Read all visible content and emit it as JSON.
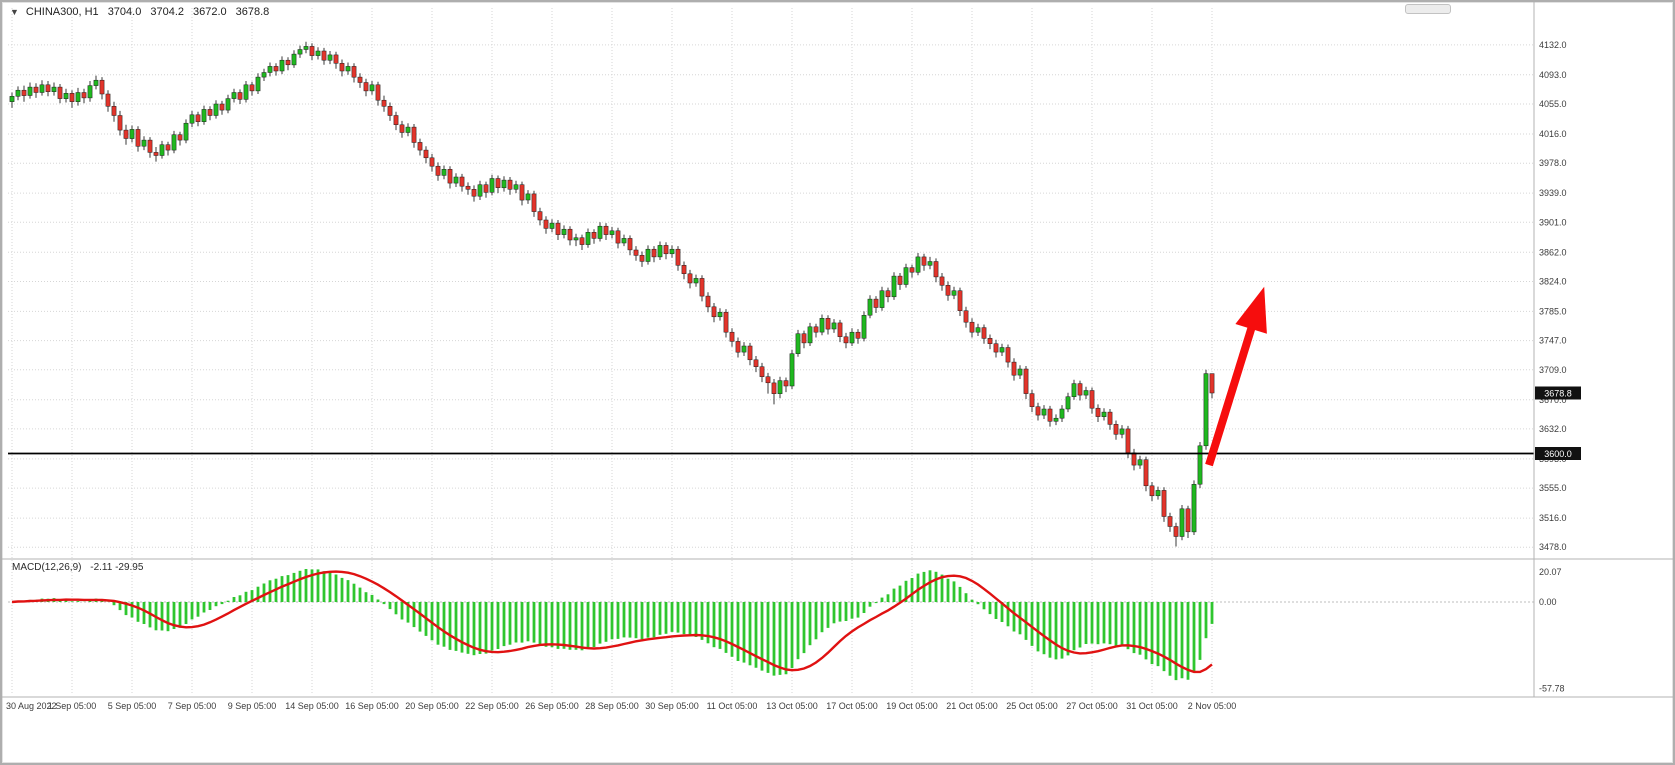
{
  "window": {
    "title_symbol": "CHINA300, H1",
    "ohlc": {
      "open": "3704.0",
      "high": "3704.2",
      "low": "3672.0",
      "close": "3678.8"
    }
  },
  "indicator_label": {
    "name": "MACD(12,26,9)",
    "values": "-2.11 -29.95"
  },
  "colors": {
    "up_candle": "#1fb81f",
    "down_candle": "#e2342b",
    "wick": "#3a3a3a",
    "grid": "#d6d6d6",
    "hline": "#000000",
    "badge_bg": "#111111",
    "badge_text": "#ffffff",
    "axis_text": "#3c3c3c"
  },
  "chart_data": {
    "type": "candlestick",
    "symbol": "CHINA300",
    "timeframe": "H1",
    "title": "CHINA300, H1 3704.0 3704.2 3672.0 3678.8",
    "ohlc_current": {
      "open": 3704.0,
      "high": 3704.2,
      "low": 3672.0,
      "close": 3678.8
    },
    "current_price": 3678.8,
    "horizontal_line_price": 3600.0,
    "price_range_rendered": [
      3464,
      4180
    ],
    "price_axis_ticks": [
      4132.0,
      4093.0,
      4055.0,
      4016.0,
      3978.0,
      3939.0,
      3901.0,
      3862.0,
      3824.0,
      3785.0,
      3747.0,
      3709.0,
      3670.0,
      3632.0,
      3593.0,
      3555.0,
      3516.0,
      3478.0
    ],
    "time_labels": [
      "30 Aug 2022",
      "1 Sep 05:00",
      "5 Sep 05:00",
      "7 Sep 05:00",
      "9 Sep 05:00",
      "14 Sep 05:00",
      "16 Sep 05:00",
      "20 Sep 05:00",
      "22 Sep 05:00",
      "26 Sep 05:00",
      "28 Sep 05:00",
      "30 Sep 05:00",
      "11 Oct 05:00",
      "13 Oct 05:00",
      "17 Oct 05:00",
      "19 Oct 05:00",
      "21 Oct 05:00",
      "25 Oct 05:00",
      "27 Oct 05:00",
      "31 Oct 05:00",
      "2 Nov 05:00"
    ],
    "indicator": {
      "type": "MACD",
      "fast": 12,
      "slow": 26,
      "signal": 9,
      "current_macd": -2.11,
      "current_signal": -29.95,
      "histogram_color": "#2fc62f",
      "signal_color": "#e01212",
      "axis_ticks": [
        {
          "label": "20.07",
          "value": 20.07
        },
        {
          "label": "0.00",
          "value": 0
        },
        {
          "label": "-57.78",
          "value": -57.78
        }
      ]
    },
    "annotations": [
      {
        "type": "arrow-up",
        "color": "#f60d0d",
        "width": 8,
        "from": {
          "index": 199.5,
          "price": 3585
        },
        "to": {
          "index": 208.7,
          "price": 3817
        }
      }
    ],
    "candles_ohlc": [
      [
        4058,
        4070,
        4050,
        4065
      ],
      [
        4065,
        4078,
        4060,
        4073
      ],
      [
        4073,
        4079,
        4058,
        4066
      ],
      [
        4066,
        4083,
        4062,
        4077
      ],
      [
        4077,
        4082,
        4063,
        4070
      ],
      [
        4070,
        4086,
        4066,
        4080
      ],
      [
        4080,
        4085,
        4065,
        4071
      ],
      [
        4071,
        4083,
        4066,
        4077
      ],
      [
        4077,
        4081,
        4056,
        4062
      ],
      [
        4062,
        4075,
        4057,
        4069
      ],
      [
        4069,
        4073,
        4050,
        4058
      ],
      [
        4058,
        4076,
        4053,
        4070
      ],
      [
        4070,
        4075,
        4056,
        4063
      ],
      [
        4063,
        4085,
        4058,
        4079
      ],
      [
        4079,
        4092,
        4074,
        4086
      ],
      [
        4086,
        4090,
        4061,
        4068
      ],
      [
        4068,
        4073,
        4045,
        4052
      ],
      [
        4052,
        4058,
        4032,
        4040
      ],
      [
        4040,
        4046,
        4014,
        4021
      ],
      [
        4021,
        4028,
        4002,
        4010
      ],
      [
        4010,
        4027,
        4005,
        4022
      ],
      [
        4022,
        4026,
        3993,
        4000
      ],
      [
        4000,
        4013,
        3995,
        4008
      ],
      [
        4008,
        4012,
        3985,
        3992
      ],
      [
        3992,
        3999,
        3980,
        3988
      ],
      [
        3988,
        4007,
        3984,
        4002
      ],
      [
        4002,
        4006,
        3988,
        3995
      ],
      [
        3995,
        4020,
        3991,
        4015
      ],
      [
        4015,
        4019,
        4001,
        4008
      ],
      [
        4008,
        4035,
        4004,
        4030
      ],
      [
        4030,
        4046,
        4025,
        4041
      ],
      [
        4041,
        4045,
        4026,
        4032
      ],
      [
        4032,
        4053,
        4028,
        4048
      ],
      [
        4048,
        4052,
        4034,
        4040
      ],
      [
        4040,
        4060,
        4036,
        4055
      ],
      [
        4055,
        4059,
        4041,
        4047
      ],
      [
        4047,
        4067,
        4043,
        4062
      ],
      [
        4062,
        4075,
        4057,
        4070
      ],
      [
        4070,
        4074,
        4055,
        4061
      ],
      [
        4061,
        4085,
        4057,
        4080
      ],
      [
        4080,
        4084,
        4066,
        4072
      ],
      [
        4072,
        4095,
        4068,
        4090
      ],
      [
        4090,
        4101,
        4085,
        4096
      ],
      [
        4096,
        4109,
        4091,
        4104
      ],
      [
        4104,
        4108,
        4092,
        4098
      ],
      [
        4098,
        4117,
        4094,
        4112
      ],
      [
        4112,
        4116,
        4099,
        4106
      ],
      [
        4106,
        4125,
        4102,
        4120
      ],
      [
        4120,
        4131,
        4115,
        4126
      ],
      [
        4126,
        4136,
        4121,
        4130
      ],
      [
        4130,
        4134,
        4112,
        4118
      ],
      [
        4118,
        4129,
        4113,
        4124
      ],
      [
        4124,
        4128,
        4106,
        4112
      ],
      [
        4112,
        4124,
        4107,
        4119
      ],
      [
        4119,
        4123,
        4101,
        4108
      ],
      [
        4108,
        4113,
        4091,
        4098
      ],
      [
        4098,
        4109,
        4093,
        4104
      ],
      [
        4104,
        4108,
        4083,
        4090
      ],
      [
        4090,
        4095,
        4076,
        4083
      ],
      [
        4083,
        4088,
        4065,
        4072
      ],
      [
        4072,
        4085,
        4067,
        4080
      ],
      [
        4080,
        4084,
        4053,
        4060
      ],
      [
        4060,
        4066,
        4045,
        4052
      ],
      [
        4052,
        4057,
        4033,
        4040
      ],
      [
        4040,
        4045,
        4021,
        4028
      ],
      [
        4028,
        4033,
        4011,
        4018
      ],
      [
        4018,
        4030,
        4013,
        4025
      ],
      [
        4025,
        4029,
        3998,
        4005
      ],
      [
        4005,
        4010,
        3988,
        3995
      ],
      [
        3995,
        4000,
        3978,
        3985
      ],
      [
        3985,
        3990,
        3967,
        3974
      ],
      [
        3974,
        3979,
        3955,
        3962
      ],
      [
        3962,
        3975,
        3957,
        3970
      ],
      [
        3970,
        3974,
        3945,
        3952
      ],
      [
        3952,
        3965,
        3947,
        3960
      ],
      [
        3960,
        3964,
        3941,
        3948
      ],
      [
        3948,
        3953,
        3937,
        3944
      ],
      [
        3944,
        3949,
        3928,
        3935
      ],
      [
        3935,
        3955,
        3930,
        3950
      ],
      [
        3950,
        3954,
        3933,
        3940
      ],
      [
        3940,
        3963,
        3936,
        3958
      ],
      [
        3958,
        3962,
        3939,
        3946
      ],
      [
        3946,
        3961,
        3941,
        3956
      ],
      [
        3956,
        3960,
        3937,
        3944
      ],
      [
        3944,
        3955,
        3939,
        3950
      ],
      [
        3950,
        3954,
        3923,
        3930
      ],
      [
        3930,
        3943,
        3925,
        3938
      ],
      [
        3938,
        3942,
        3908,
        3915
      ],
      [
        3915,
        3920,
        3897,
        3904
      ],
      [
        3904,
        3909,
        3886,
        3893
      ],
      [
        3893,
        3905,
        3888,
        3900
      ],
      [
        3900,
        3904,
        3878,
        3885
      ],
      [
        3885,
        3897,
        3880,
        3892
      ],
      [
        3892,
        3896,
        3871,
        3878
      ],
      [
        3878,
        3886,
        3870,
        3881
      ],
      [
        3881,
        3885,
        3865,
        3872
      ],
      [
        3872,
        3893,
        3868,
        3888
      ],
      [
        3888,
        3892,
        3873,
        3880
      ],
      [
        3880,
        3901,
        3876,
        3896
      ],
      [
        3896,
        3900,
        3878,
        3885
      ],
      [
        3885,
        3895,
        3880,
        3890
      ],
      [
        3890,
        3894,
        3867,
        3874
      ],
      [
        3874,
        3885,
        3870,
        3880
      ],
      [
        3880,
        3884,
        3858,
        3865
      ],
      [
        3865,
        3870,
        3851,
        3858
      ],
      [
        3858,
        3863,
        3843,
        3850
      ],
      [
        3850,
        3871,
        3846,
        3866
      ],
      [
        3866,
        3870,
        3849,
        3856
      ],
      [
        3856,
        3876,
        3852,
        3871
      ],
      [
        3871,
        3875,
        3853,
        3860
      ],
      [
        3860,
        3871,
        3855,
        3866
      ],
      [
        3866,
        3870,
        3838,
        3845
      ],
      [
        3845,
        3850,
        3827,
        3834
      ],
      [
        3834,
        3839,
        3815,
        3822
      ],
      [
        3822,
        3833,
        3817,
        3828
      ],
      [
        3828,
        3832,
        3798,
        3805
      ],
      [
        3805,
        3810,
        3784,
        3791
      ],
      [
        3791,
        3796,
        3771,
        3778
      ],
      [
        3778,
        3789,
        3773,
        3784
      ],
      [
        3784,
        3788,
        3751,
        3758
      ],
      [
        3758,
        3763,
        3739,
        3746
      ],
      [
        3746,
        3751,
        3725,
        3732
      ],
      [
        3732,
        3745,
        3727,
        3740
      ],
      [
        3740,
        3744,
        3715,
        3722
      ],
      [
        3722,
        3727,
        3706,
        3713
      ],
      [
        3713,
        3718,
        3693,
        3700
      ],
      [
        3700,
        3705,
        3678,
        3692
      ],
      [
        3692,
        3697,
        3664,
        3678
      ],
      [
        3678,
        3700,
        3672,
        3695
      ],
      [
        3695,
        3699,
        3680,
        3688
      ],
      [
        3688,
        3735,
        3684,
        3730
      ],
      [
        3730,
        3761,
        3726,
        3756
      ],
      [
        3756,
        3760,
        3737,
        3744
      ],
      [
        3744,
        3770,
        3740,
        3765
      ],
      [
        3765,
        3769,
        3751,
        3758
      ],
      [
        3758,
        3781,
        3754,
        3776
      ],
      [
        3776,
        3780,
        3755,
        3762
      ],
      [
        3762,
        3775,
        3757,
        3770
      ],
      [
        3770,
        3774,
        3745,
        3752
      ],
      [
        3752,
        3757,
        3737,
        3744
      ],
      [
        3744,
        3763,
        3740,
        3758
      ],
      [
        3758,
        3762,
        3743,
        3750
      ],
      [
        3750,
        3785,
        3746,
        3780
      ],
      [
        3780,
        3806,
        3776,
        3801
      ],
      [
        3801,
        3805,
        3783,
        3790
      ],
      [
        3790,
        3817,
        3786,
        3812
      ],
      [
        3812,
        3816,
        3797,
        3804
      ],
      [
        3804,
        3836,
        3800,
        3831
      ],
      [
        3831,
        3835,
        3813,
        3820
      ],
      [
        3820,
        3847,
        3816,
        3842
      ],
      [
        3842,
        3846,
        3829,
        3836
      ],
      [
        3836,
        3861,
        3832,
        3856
      ],
      [
        3856,
        3860,
        3838,
        3845
      ],
      [
        3845,
        3856,
        3840,
        3850
      ],
      [
        3850,
        3854,
        3823,
        3830
      ],
      [
        3830,
        3835,
        3812,
        3819
      ],
      [
        3819,
        3824,
        3799,
        3806
      ],
      [
        3806,
        3817,
        3801,
        3812
      ],
      [
        3812,
        3816,
        3779,
        3786
      ],
      [
        3786,
        3791,
        3764,
        3771
      ],
      [
        3771,
        3776,
        3751,
        3758
      ],
      [
        3758,
        3769,
        3753,
        3764
      ],
      [
        3764,
        3768,
        3743,
        3750
      ],
      [
        3750,
        3755,
        3736,
        3743
      ],
      [
        3743,
        3748,
        3725,
        3732
      ],
      [
        3732,
        3743,
        3727,
        3738
      ],
      [
        3738,
        3742,
        3712,
        3719
      ],
      [
        3719,
        3724,
        3695,
        3702
      ],
      [
        3702,
        3715,
        3697,
        3710
      ],
      [
        3710,
        3714,
        3671,
        3678
      ],
      [
        3678,
        3683,
        3654,
        3661
      ],
      [
        3661,
        3666,
        3643,
        3650
      ],
      [
        3650,
        3663,
        3645,
        3658
      ],
      [
        3658,
        3662,
        3635,
        3642
      ],
      [
        3642,
        3651,
        3637,
        3646
      ],
      [
        3646,
        3663,
        3641,
        3658
      ],
      [
        3658,
        3679,
        3654,
        3674
      ],
      [
        3674,
        3696,
        3670,
        3691
      ],
      [
        3691,
        3695,
        3669,
        3676
      ],
      [
        3676,
        3687,
        3671,
        3682
      ],
      [
        3682,
        3686,
        3652,
        3659
      ],
      [
        3659,
        3664,
        3641,
        3648
      ],
      [
        3648,
        3659,
        3643,
        3654
      ],
      [
        3654,
        3658,
        3631,
        3638
      ],
      [
        3638,
        3643,
        3618,
        3625
      ],
      [
        3625,
        3637,
        3620,
        3632
      ],
      [
        3632,
        3636,
        3594,
        3601
      ],
      [
        3601,
        3606,
        3578,
        3585
      ],
      [
        3585,
        3597,
        3580,
        3592
      ],
      [
        3592,
        3596,
        3551,
        3558
      ],
      [
        3558,
        3563,
        3538,
        3545
      ],
      [
        3545,
        3557,
        3540,
        3552
      ],
      [
        3552,
        3556,
        3511,
        3518
      ],
      [
        3518,
        3523,
        3498,
        3505
      ],
      [
        3505,
        3510,
        3479,
        3492
      ],
      [
        3492,
        3533,
        3487,
        3528
      ],
      [
        3528,
        3532,
        3490,
        3498
      ],
      [
        3498,
        3565,
        3494,
        3560
      ],
      [
        3560,
        3615,
        3555,
        3610
      ],
      [
        3610,
        3709,
        3605,
        3704
      ],
      [
        3704,
        3704.2,
        3672,
        3678.8
      ]
    ]
  }
}
